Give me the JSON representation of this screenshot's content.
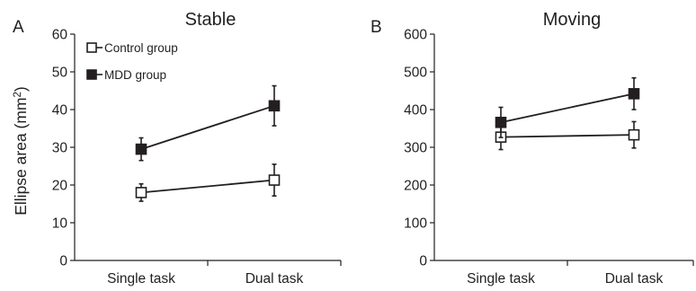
{
  "chart_data": [
    {
      "type": "line",
      "panel_letter": "A",
      "title": "Stable",
      "ylabel": "Ellipse area (mm2)",
      "ylim": [
        0,
        60
      ],
      "yticks": [
        0,
        10,
        20,
        30,
        40,
        50,
        60
      ],
      "categories": [
        "Single task",
        "Dual task"
      ],
      "legend": {
        "placement": "top-left",
        "visible": true
      },
      "series": [
        {
          "name": "Control group",
          "marker": "open-square",
          "values": [
            18,
            21.3
          ],
          "error": [
            2.3,
            4.2
          ]
        },
        {
          "name": "MDD group",
          "marker": "filled-square",
          "values": [
            29.5,
            41
          ],
          "error": [
            3,
            5.3
          ]
        }
      ]
    },
    {
      "type": "line",
      "panel_letter": "B",
      "title": "Moving",
      "ylim": [
        0,
        600
      ],
      "yticks": [
        0,
        100,
        200,
        300,
        400,
        500,
        600
      ],
      "categories": [
        "Single task",
        "Dual task"
      ],
      "legend": {
        "visible": false
      },
      "series": [
        {
          "name": "Control group",
          "marker": "open-square",
          "values": [
            327,
            333
          ],
          "error": [
            33,
            35
          ]
        },
        {
          "name": "MDD group",
          "marker": "filled-square",
          "values": [
            366,
            442
          ],
          "error": [
            40,
            42
          ]
        }
      ]
    }
  ]
}
